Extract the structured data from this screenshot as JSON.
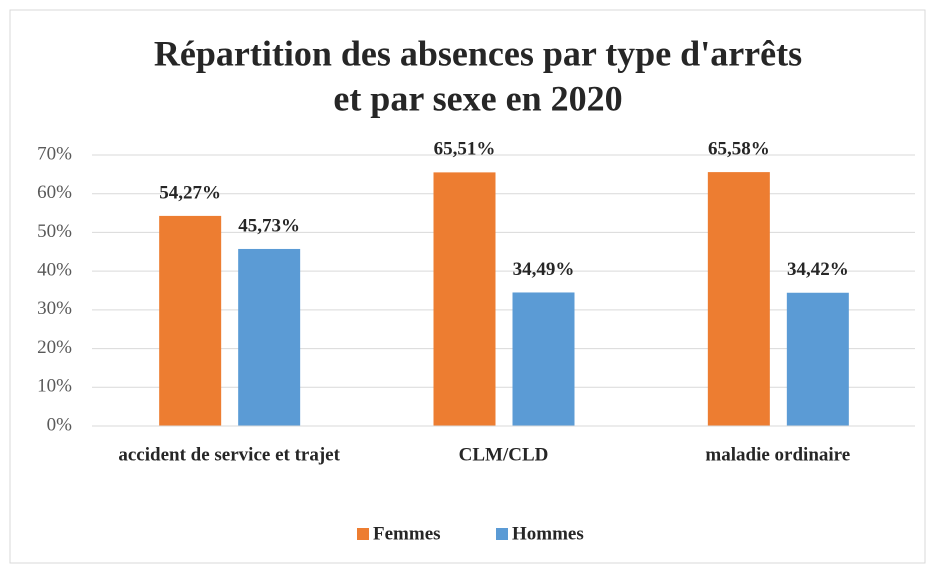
{
  "chart_data": {
    "type": "bar",
    "title": [
      "Répartition des absences par type d'arrêts",
      "et par sexe en 2020"
    ],
    "categories": [
      "accident de service et trajet",
      "CLM/CLD",
      "maladie ordinaire"
    ],
    "series": [
      {
        "name": "Femmes",
        "color": "#ed7d31",
        "values": [
          54.27,
          65.51,
          65.58
        ],
        "value_labels": [
          "54,27%",
          "65,51%",
          "65,58%"
        ]
      },
      {
        "name": "Hommes",
        "color": "#5b9bd5",
        "values": [
          45.73,
          34.49,
          34.42
        ],
        "value_labels": [
          "45,73%",
          "34,49%",
          "34,42%"
        ]
      }
    ],
    "ylim": [
      0,
      70
    ],
    "yticks": [
      {
        "value": 0,
        "label": "0%"
      },
      {
        "value": 10,
        "label": "10%"
      },
      {
        "value": 20,
        "label": "20%"
      },
      {
        "value": 30,
        "label": "30%"
      },
      {
        "value": 40,
        "label": "40%"
      },
      {
        "value": 50,
        "label": "50%"
      },
      {
        "value": 60,
        "label": "60%"
      },
      {
        "value": 70,
        "label": "70%"
      }
    ],
    "grid": true,
    "legend": "bottom"
  }
}
